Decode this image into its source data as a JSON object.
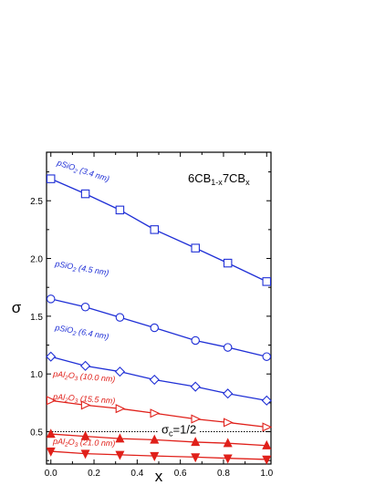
{
  "chart_data": {
    "type": "line",
    "title": "",
    "xlabel": "x",
    "ylabel": "σ",
    "xlim": [
      -0.02,
      1.02
    ],
    "ylim": [
      0.22,
      2.92
    ],
    "x_ticks": [
      "0.0",
      "0.2",
      "0.4",
      "0.6",
      "0.8",
      "1.0"
    ],
    "y_ticks": [
      "0.5",
      "1.0",
      "1.5",
      "2.0",
      "2.5"
    ],
    "x": [
      0,
      0.16,
      0.32,
      0.48,
      0.67,
      0.82,
      1.0
    ],
    "grid": false,
    "series": [
      {
        "name": "pSiO2 (3.4 nm)",
        "label_main": "pSiO",
        "label_sub": "2",
        "label_rest": " (3.4 nm)",
        "color": "#1f2fd6",
        "marker": "square",
        "values": [
          2.69,
          2.56,
          2.42,
          2.25,
          2.09,
          1.96,
          1.8
        ]
      },
      {
        "name": "pSiO2 (4.5 nm)",
        "label_main": "pSiO",
        "label_sub": "2",
        "label_rest": " (4.5 nm)",
        "color": "#1f2fd6",
        "marker": "circle",
        "values": [
          1.65,
          1.58,
          1.49,
          1.4,
          1.29,
          1.23,
          1.15
        ]
      },
      {
        "name": "pSiO2 (6.4 nm)",
        "label_main": "pSiO",
        "label_sub": "2",
        "label_rest": " (6.4 nm)",
        "color": "#1f2fd6",
        "marker": "diamond",
        "values": [
          1.15,
          1.07,
          1.02,
          0.95,
          0.89,
          0.83,
          0.77
        ]
      },
      {
        "name": "pAl2O3 (10.0 nm)",
        "label_main": "pAl",
        "label_sub": "2",
        "label_mid": "O",
        "label_sub2": "3",
        "label_rest": " (10.0 nm)",
        "color": "#e0201a",
        "marker": "triangle-right",
        "values": [
          0.77,
          0.73,
          0.7,
          0.66,
          0.61,
          0.58,
          0.54
        ]
      },
      {
        "name": "pAl2O3 (15.5 nm)",
        "label_main": "pAl",
        "label_sub": "2",
        "label_mid": "O",
        "label_sub2": "3",
        "label_rest": " (15.5 nm)",
        "color": "#e0201a",
        "marker": "triangle-up",
        "values": [
          0.48,
          0.46,
          0.44,
          0.43,
          0.41,
          0.4,
          0.38
        ]
      },
      {
        "name": "pAl2O3 (21.0 nm)",
        "label_main": "pAl",
        "label_sub": "2",
        "label_mid": "O",
        "label_sub2": "3",
        "label_rest": " (21.0 nm)",
        "color": "#e0201a",
        "marker": "triangle-down",
        "values": [
          0.33,
          0.31,
          0.3,
          0.29,
          0.28,
          0.27,
          0.26
        ]
      }
    ],
    "reference_line": {
      "y": 0.5,
      "label_main": "σ",
      "label_sub": "c",
      "label_rest": "=1/2"
    },
    "inset_label": {
      "main": "6CB",
      "sub1": "1-x",
      "mid": "7CB",
      "sub2": "x"
    }
  }
}
